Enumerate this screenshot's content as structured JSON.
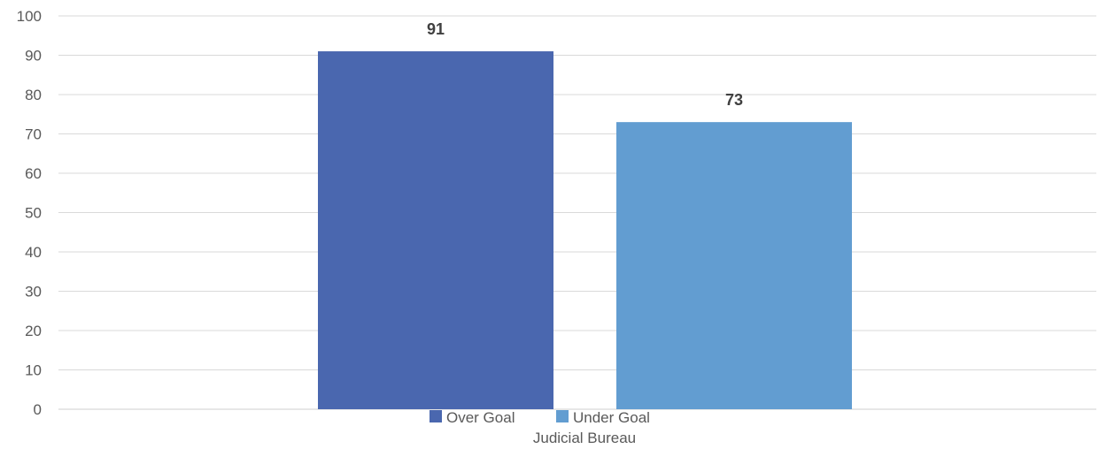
{
  "chart_data": {
    "type": "bar",
    "categories": [
      "Judicial Bureau"
    ],
    "series": [
      {
        "name": "Over Goal",
        "values": [
          91
        ],
        "color": "#4a67af"
      },
      {
        "name": "Under Goal",
        "values": [
          73
        ],
        "color": "#629dd1"
      }
    ],
    "ylim": [
      0,
      100
    ],
    "yticks": [
      0,
      10,
      20,
      30,
      40,
      50,
      60,
      70,
      80,
      90,
      100
    ],
    "grid": true,
    "legend": "bottom",
    "data_labels": true
  }
}
